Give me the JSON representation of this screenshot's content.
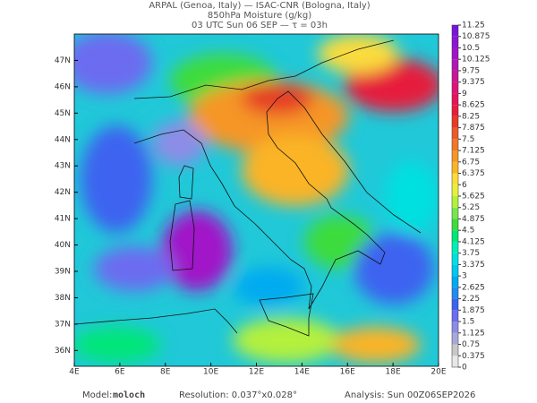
{
  "chart_data": {
    "type": "map",
    "title": [
      "ARPAL (Genoa, Italy)  —  ISAC-CNR (Bologna, Italy)",
      "850hPa Moisture (g/kg)",
      "03 UTC Sun 06 SEP  —  τ = 03h"
    ],
    "xlim": [
      4,
      20
    ],
    "ylim": [
      35.4,
      48
    ],
    "xticks": [
      {
        "value": 4,
        "label": "4E"
      },
      {
        "value": 6,
        "label": "6E"
      },
      {
        "value": 8,
        "label": "8E"
      },
      {
        "value": 10,
        "label": "10E"
      },
      {
        "value": 12,
        "label": "12E"
      },
      {
        "value": 14,
        "label": "14E"
      },
      {
        "value": 16,
        "label": "16E"
      },
      {
        "value": 18,
        "label": "18E"
      },
      {
        "value": 20,
        "label": "20E"
      }
    ],
    "yticks": [
      {
        "value": 36,
        "label": "36N"
      },
      {
        "value": 37,
        "label": "37N"
      },
      {
        "value": 38,
        "label": "38N"
      },
      {
        "value": 39,
        "label": "39N"
      },
      {
        "value": 40,
        "label": "40N"
      },
      {
        "value": 41,
        "label": "41N"
      },
      {
        "value": 42,
        "label": "42N"
      },
      {
        "value": 43,
        "label": "43N"
      },
      {
        "value": 44,
        "label": "44N"
      },
      {
        "value": 45,
        "label": "45N"
      },
      {
        "value": 46,
        "label": "46N"
      },
      {
        "value": 47,
        "label": "47N"
      }
    ],
    "colorbar": {
      "levels": [
        0,
        0.375,
        0.75,
        1.125,
        1.5,
        1.875,
        2.25,
        2.625,
        3,
        3.375,
        3.75,
        4.125,
        4.5,
        4.875,
        5.25,
        5.625,
        6,
        6.375,
        6.75,
        7.125,
        7.5,
        7.875,
        8.25,
        8.625,
        9,
        9.375,
        9.75,
        10.125,
        10.5,
        10.875,
        11.25
      ],
      "colors": [
        "#e8e8e8",
        "#c8c8c8",
        "#a8a8d8",
        "#8c8ce6",
        "#6c6cf0",
        "#3c64f0",
        "#1e8cf0",
        "#00aaf0",
        "#00c8f0",
        "#00e0e0",
        "#00f0b4",
        "#00e678",
        "#3cdc3c",
        "#78e650",
        "#b4f03c",
        "#e6f03c",
        "#fadc3c",
        "#fab428",
        "#f59628",
        "#f07828",
        "#eb5a28",
        "#e63c28",
        "#e61e3c",
        "#e6145a",
        "#dc1478",
        "#c81496",
        "#b414b4",
        "#a014c8",
        "#8c14d2",
        "#7814dc"
      ]
    },
    "footer": {
      "model_label": "Model:",
      "model": "moloch",
      "resolution": "Resolution: 0.037°x0.028°",
      "analysis": "Analysis: Sun 00Z06SEP2026"
    }
  }
}
